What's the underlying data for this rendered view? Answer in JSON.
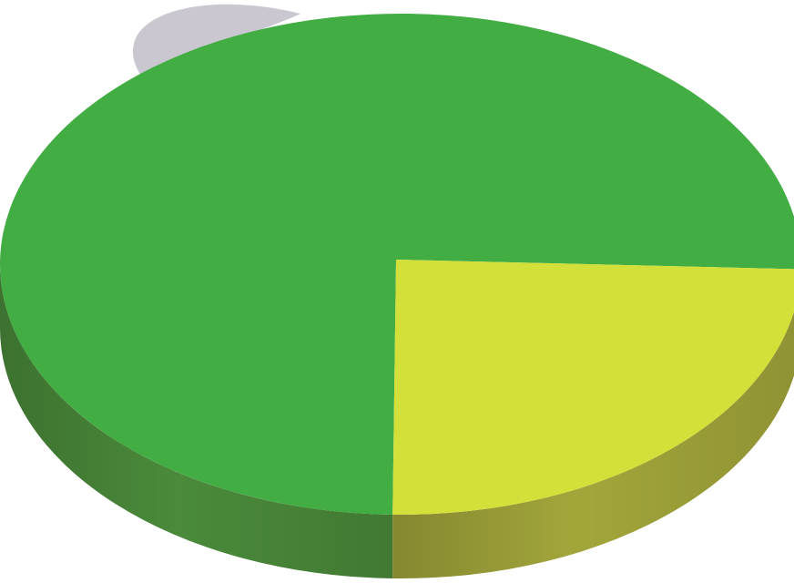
{
  "chart_data": {
    "type": "pie",
    "style": "3d",
    "title": "",
    "series": [
      {
        "values": [
          75,
          25
        ],
        "colors": {
          "top": [
            "#42ad43",
            "#d3e03a"
          ],
          "side": [
            "#4a8a3a",
            "#a2a63a"
          ]
        }
      }
    ],
    "decoration": {
      "watermark_color": "#b8b4c2"
    }
  }
}
